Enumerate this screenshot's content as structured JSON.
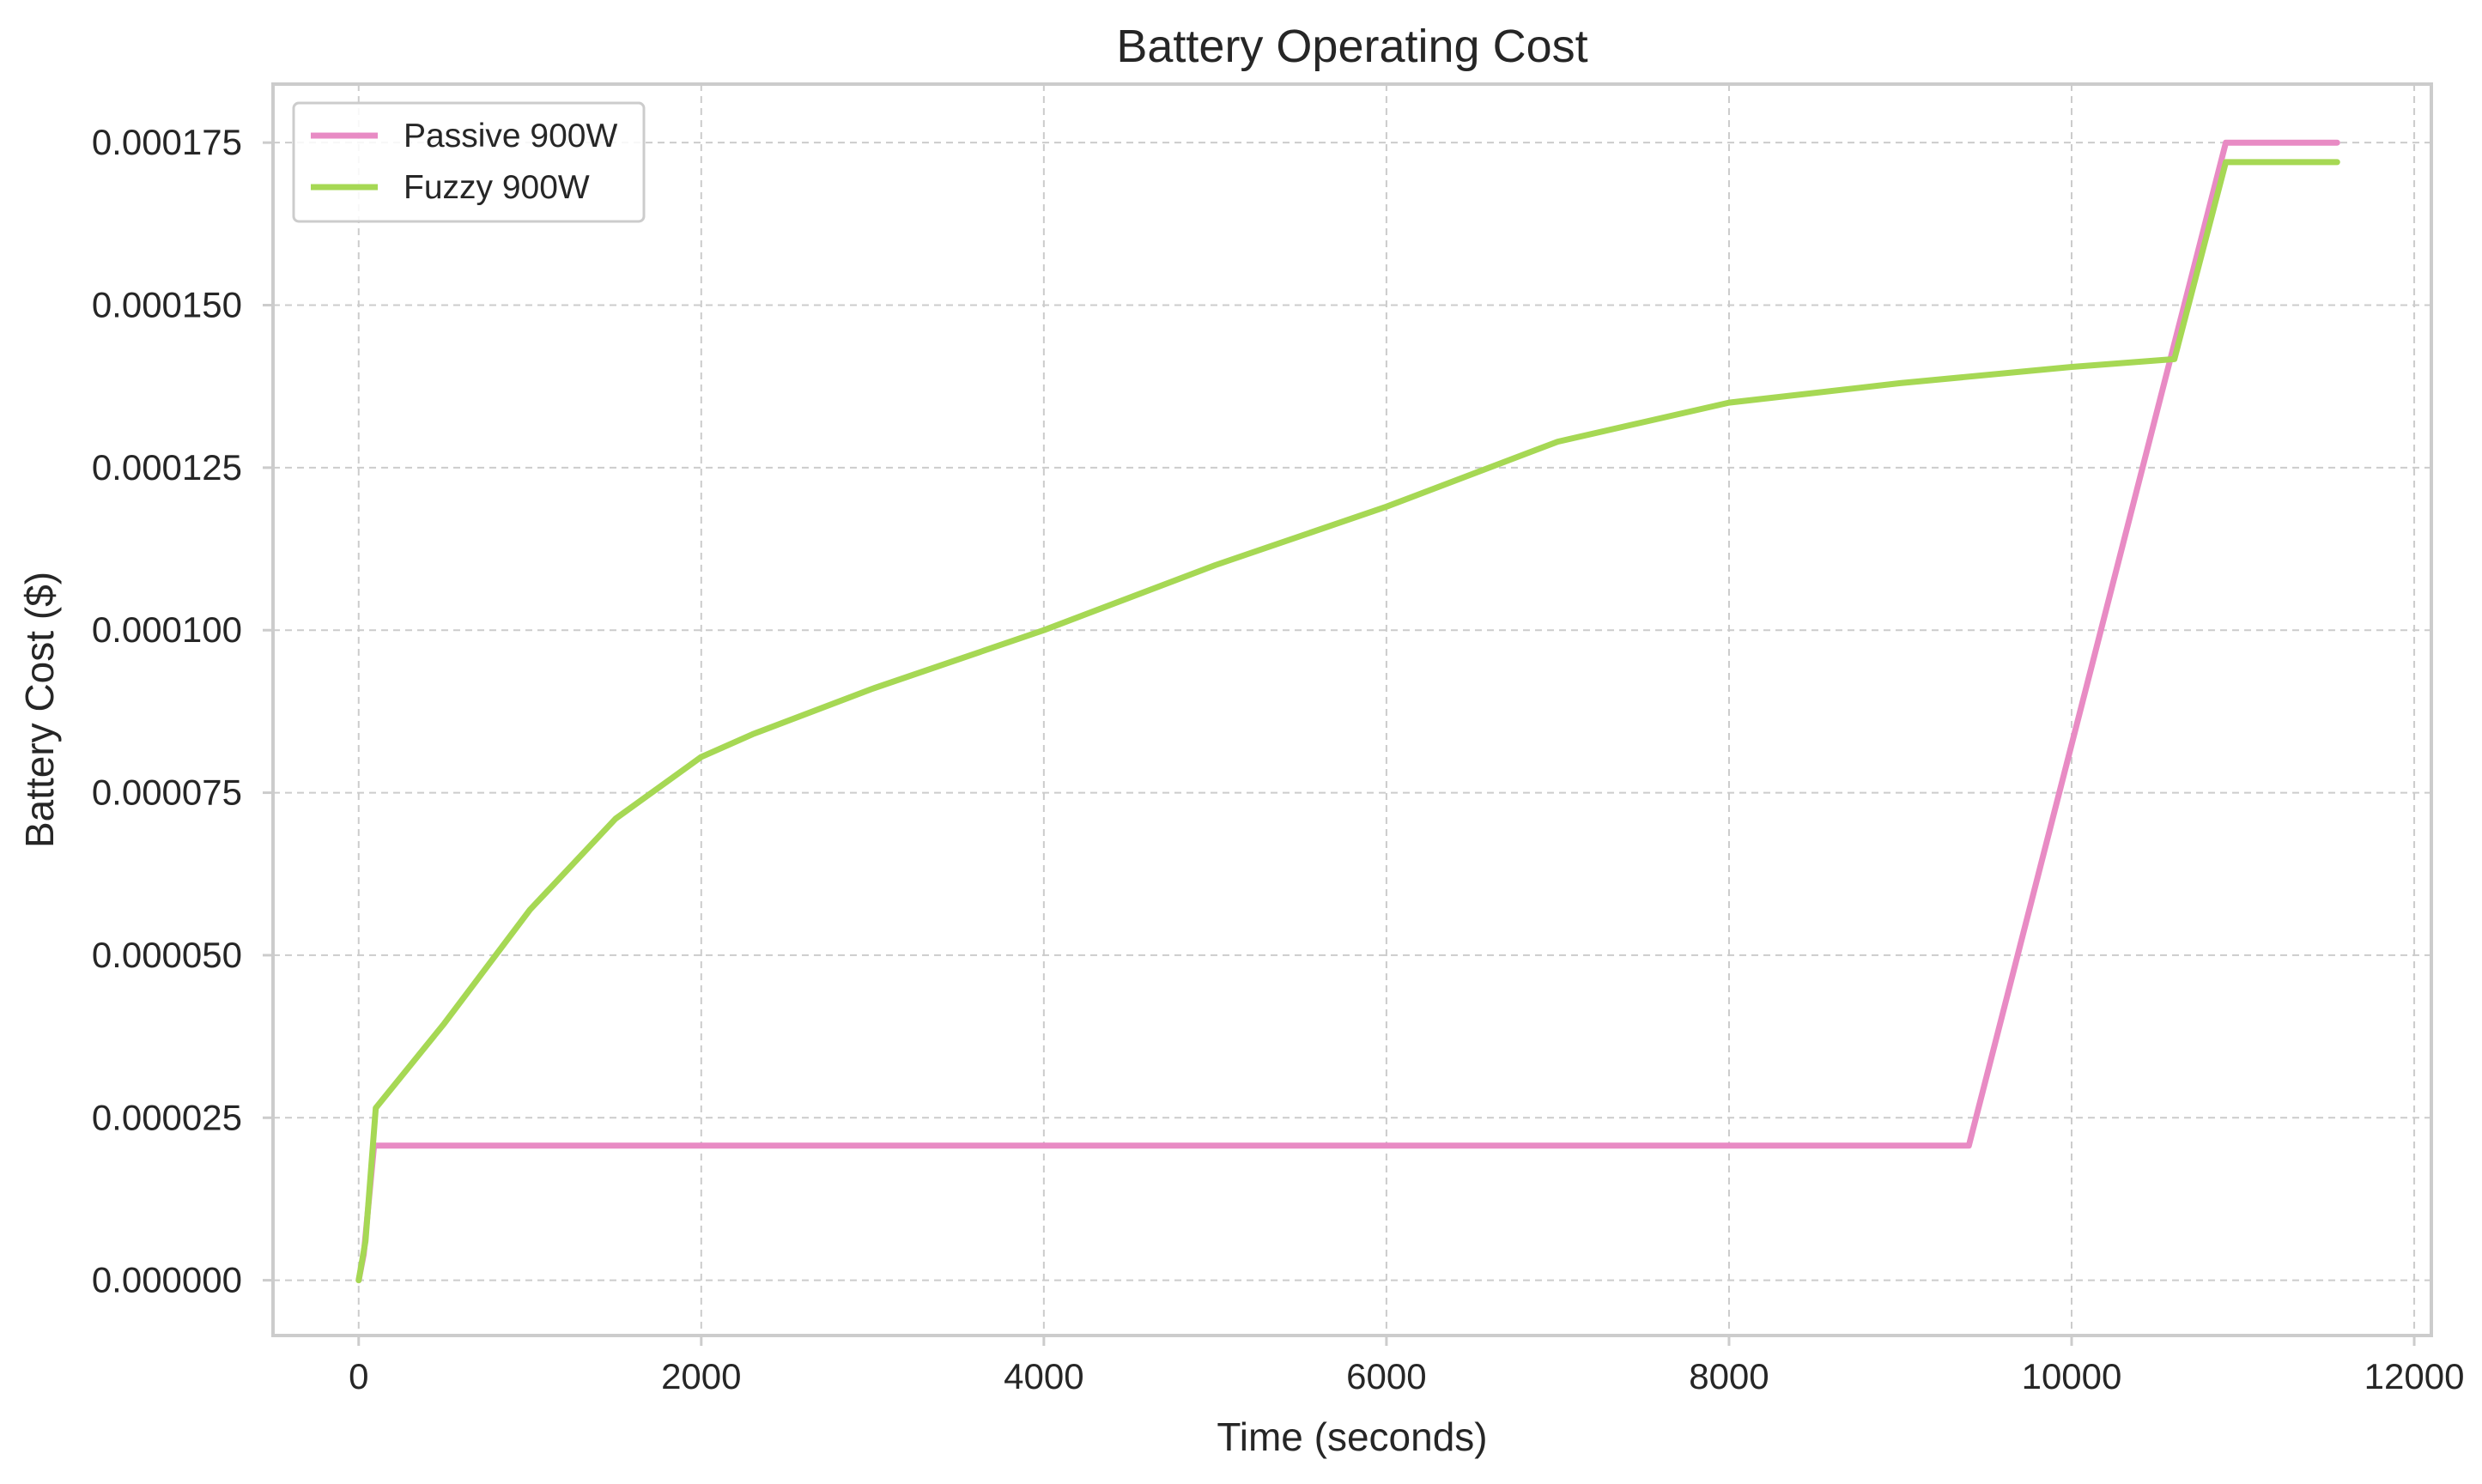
{
  "chart_data": {
    "type": "line",
    "title": "Battery Operating Cost",
    "xlabel": "Time (seconds)",
    "ylabel": "Battery Cost ($)",
    "xlim": [
      -500,
      12100
    ],
    "ylim": [
      -8.5e-06,
      0.000184
    ],
    "x_ticks": [
      0,
      2000,
      4000,
      6000,
      8000,
      10000,
      12000
    ],
    "x_tick_labels": [
      "0",
      "2000",
      "4000",
      "6000",
      "8000",
      "10000",
      "12000"
    ],
    "y_ticks": [
      0,
      2.5e-05,
      5e-05,
      7.5e-05,
      0.0001,
      0.000125,
      0.00015,
      0.000175
    ],
    "y_tick_labels": [
      "0.000000",
      "0.000025",
      "0.000050",
      "0.000075",
      "0.000100",
      "0.000125",
      "0.000150",
      "0.000175"
    ],
    "grid": true,
    "legend_position": "top-left",
    "series": [
      {
        "name": "Passive 900W",
        "color": "#e88bc4",
        "x": [
          0,
          30,
          90,
          9400,
          10900,
          11550
        ],
        "y": [
          0,
          4e-06,
          2.07e-05,
          2.07e-05,
          0.000175,
          0.000175
        ]
      },
      {
        "name": "Fuzzy 900W",
        "color": "#a6d854",
        "x": [
          0,
          40,
          100,
          500,
          1000,
          1500,
          2000,
          2300,
          3000,
          4000,
          5000,
          6000,
          7000,
          8000,
          9000,
          10000,
          10600,
          10900,
          11550
        ],
        "y": [
          0,
          6e-06,
          2.65e-05,
          3.95e-05,
          5.7e-05,
          7.1e-05,
          8.05e-05,
          8.4e-05,
          9.1e-05,
          0.0001,
          0.00011,
          0.000119,
          0.000129,
          0.000135,
          0.000138,
          0.0001405,
          0.0001417,
          0.000172,
          0.000172
        ]
      }
    ]
  }
}
